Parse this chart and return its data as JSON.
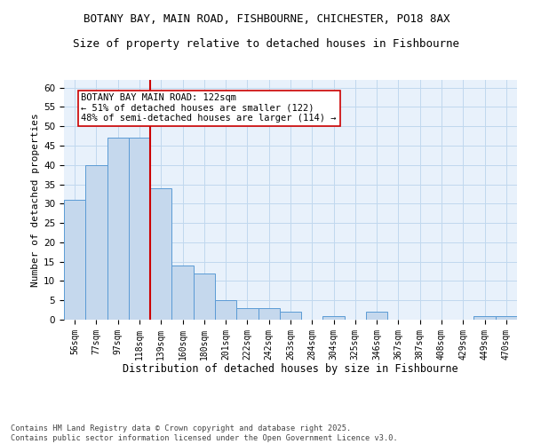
{
  "title1": "BOTANY BAY, MAIN ROAD, FISHBOURNE, CHICHESTER, PO18 8AX",
  "title2": "Size of property relative to detached houses in Fishbourne",
  "xlabel": "Distribution of detached houses by size in Fishbourne",
  "ylabel": "Number of detached properties",
  "categories": [
    "56sqm",
    "77sqm",
    "97sqm",
    "118sqm",
    "139sqm",
    "160sqm",
    "180sqm",
    "201sqm",
    "222sqm",
    "242sqm",
    "263sqm",
    "284sqm",
    "304sqm",
    "325sqm",
    "346sqm",
    "367sqm",
    "387sqm",
    "408sqm",
    "429sqm",
    "449sqm",
    "470sqm"
  ],
  "values": [
    31,
    40,
    47,
    47,
    34,
    14,
    12,
    5,
    3,
    3,
    2,
    0,
    1,
    0,
    2,
    0,
    0,
    0,
    0,
    1,
    1
  ],
  "bar_color": "#c5d8ed",
  "bar_edge_color": "#5b9bd5",
  "grid_color": "#c0d8ee",
  "background_color": "#e8f1fb",
  "annotation_text": "BOTANY BAY MAIN ROAD: 122sqm\n← 51% of detached houses are smaller (122)\n48% of semi-detached houses are larger (114) →",
  "vline_x": 3.5,
  "vline_color": "#cc0000",
  "annotation_box_edge_color": "#cc0000",
  "annotation_fontsize": 7.5,
  "ylim": [
    0,
    62
  ],
  "yticks": [
    0,
    5,
    10,
    15,
    20,
    25,
    30,
    35,
    40,
    45,
    50,
    55,
    60
  ],
  "footnote": "Contains HM Land Registry data © Crown copyright and database right 2025.\nContains public sector information licensed under the Open Government Licence v3.0.",
  "title1_fontsize": 9,
  "title2_fontsize": 9,
  "xlabel_fontsize": 8.5,
  "ylabel_fontsize": 8
}
